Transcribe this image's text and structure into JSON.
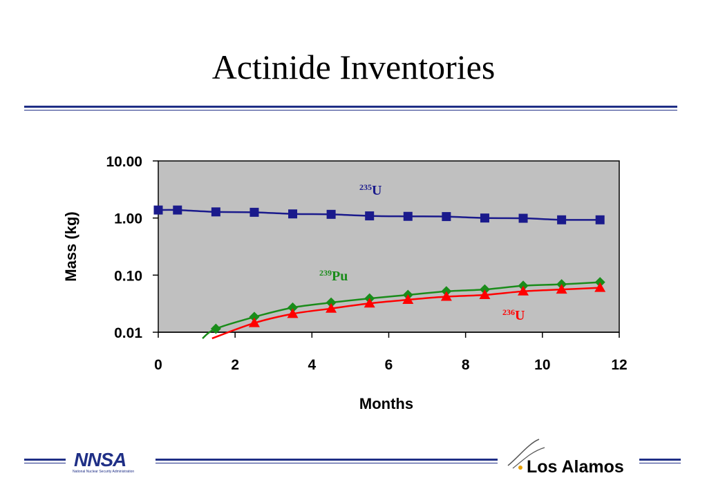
{
  "slide": {
    "title": "Actinide Inventories"
  },
  "logos": {
    "nnsa_text": "NNSA",
    "nnsa_subtitle": "National Nuclear Security Administration",
    "los_alamos_text": "Los Alamos",
    "brand_color": "#1f2f86"
  },
  "chart_data": {
    "type": "line",
    "xlabel": "Months",
    "ylabel": "Mass (kg)",
    "xlim": [
      0,
      12
    ],
    "ylim": [
      0.01,
      10
    ],
    "yscale": "log",
    "x_ticks": [
      "0",
      "2",
      "4",
      "6",
      "8",
      "10",
      "12"
    ],
    "y_ticks": [
      "10.00",
      "1.00",
      "0.10",
      "0.01"
    ],
    "grid": false,
    "plot_background": "#c0c0c0",
    "series": [
      {
        "label_mass": "235",
        "label_element": "U",
        "color": "#1a1a8c",
        "marker": "square",
        "x": [
          0,
          0.5,
          1.5,
          2.5,
          3.5,
          4.5,
          5.5,
          6.5,
          7.5,
          8.5,
          9.5,
          10.5,
          11.5
        ],
        "y": [
          1.38,
          1.38,
          1.28,
          1.26,
          1.18,
          1.16,
          1.09,
          1.07,
          1.06,
          1.0,
          0.99,
          0.93,
          0.93
        ]
      },
      {
        "label_mass": "239",
        "label_element": "Pu",
        "color": "#1a8c1a",
        "marker": "diamond",
        "x": [
          1.5,
          2.5,
          3.5,
          4.5,
          5.5,
          6.5,
          7.5,
          8.5,
          9.5,
          10.5,
          11.5
        ],
        "y": [
          0.0115,
          0.0185,
          0.027,
          0.033,
          0.039,
          0.045,
          0.052,
          0.056,
          0.065,
          0.069,
          0.075
        ],
        "trend_start": [
          1.15,
          0.0078
        ]
      },
      {
        "label_mass": "236",
        "label_element": "U",
        "color": "#ff0000",
        "marker": "triangle",
        "x": [
          2.5,
          3.5,
          4.5,
          5.5,
          6.5,
          7.5,
          8.5,
          9.5,
          10.5,
          11.5
        ],
        "y": [
          0.0145,
          0.021,
          0.026,
          0.032,
          0.037,
          0.042,
          0.045,
          0.052,
          0.056,
          0.06
        ],
        "trend_start": [
          1.4,
          0.0078
        ]
      }
    ]
  }
}
